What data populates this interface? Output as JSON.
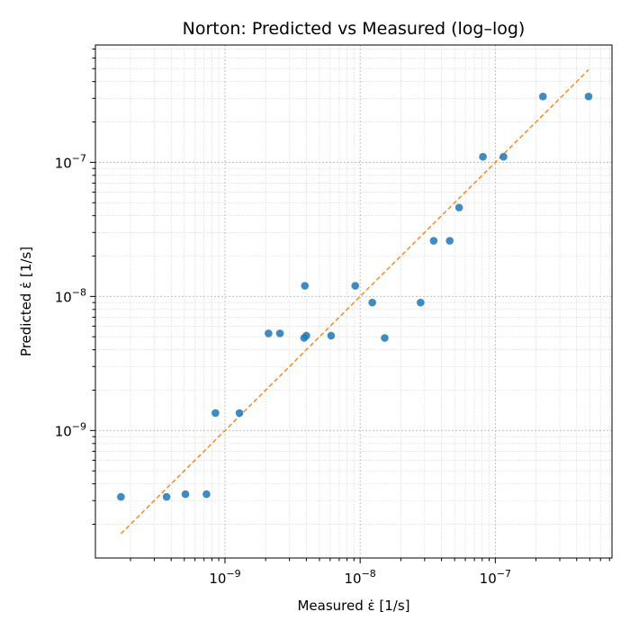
{
  "chart_data": {
    "type": "scatter",
    "title": "Norton: Predicted vs Measured (log–log)",
    "xlabel": "Measured ε̇ [1/s]",
    "ylabel": "Predicted ε̇ [1/s]",
    "xscale": "log",
    "yscale": "log",
    "xlim": [
      1.1e-10,
      7.3e-07
    ],
    "ylim": [
      1.12e-10,
      7.5e-07
    ],
    "x_ticks": [
      {
        "value": 1e-09,
        "base": "10",
        "exp": "−9"
      },
      {
        "value": 1e-08,
        "base": "10",
        "exp": "−8"
      },
      {
        "value": 1e-07,
        "base": "10",
        "exp": "−7"
      }
    ],
    "y_ticks": [
      {
        "value": 1e-09,
        "base": "10",
        "exp": "−9"
      },
      {
        "value": 1e-08,
        "base": "10",
        "exp": "−8"
      },
      {
        "value": 1e-07,
        "base": "10",
        "exp": "−7"
      }
    ],
    "grid": true,
    "colors": {
      "points": "#1f77b4",
      "identity_line": "#ff7f0e",
      "grid": "#b0b0b0"
    },
    "points": [
      {
        "x": 1.7e-10,
        "y": 3.2e-10
      },
      {
        "x": 3.7e-10,
        "y": 3.2e-10
      },
      {
        "x": 5.1e-10,
        "y": 3.35e-10
      },
      {
        "x": 7.3e-10,
        "y": 3.35e-10
      },
      {
        "x": 8.5e-10,
        "y": 1.35e-09
      },
      {
        "x": 1.28e-09,
        "y": 1.35e-09
      },
      {
        "x": 2.1e-09,
        "y": 5.3e-09
      },
      {
        "x": 2.55e-09,
        "y": 5.3e-09
      },
      {
        "x": 3.85e-09,
        "y": 4.9e-09
      },
      {
        "x": 4e-09,
        "y": 5.1e-09
      },
      {
        "x": 3.9e-09,
        "y": 1.2e-08
      },
      {
        "x": 6.1e-09,
        "y": 5.1e-09
      },
      {
        "x": 9.2e-09,
        "y": 1.2e-08
      },
      {
        "x": 1.23e-08,
        "y": 9e-09
      },
      {
        "x": 1.52e-08,
        "y": 4.9e-09
      },
      {
        "x": 2.8e-08,
        "y": 9e-09
      },
      {
        "x": 3.5e-08,
        "y": 2.6e-08
      },
      {
        "x": 4.6e-08,
        "y": 2.6e-08
      },
      {
        "x": 5.4e-08,
        "y": 4.6e-08
      },
      {
        "x": 8.1e-08,
        "y": 1.1e-07
      },
      {
        "x": 1.15e-07,
        "y": 1.1e-07
      },
      {
        "x": 2.25e-07,
        "y": 3.1e-07
      },
      {
        "x": 4.9e-07,
        "y": 3.1e-07
      }
    ],
    "identity_line": {
      "x": [
        1.7e-10,
        4.9e-07
      ],
      "y": [
        1.7e-10,
        4.9e-07
      ],
      "style": "dashed"
    }
  }
}
